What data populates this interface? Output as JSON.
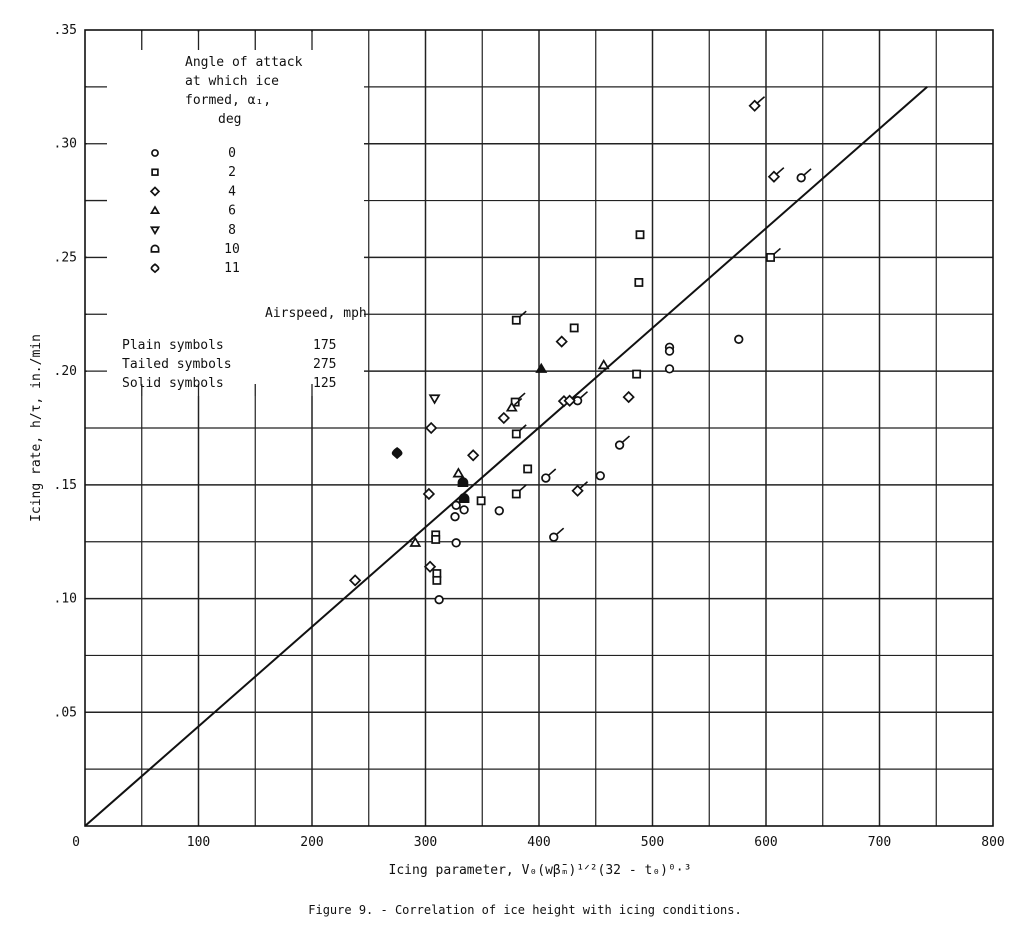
{
  "caption": "Figure 9. - Correlation of ice height with icing conditions.",
  "chart_data": {
    "type": "scatter",
    "title": "",
    "xlabel": "Icing parameter, V₀(wβ̄ₘ)¹ᐟ²(32 - t₀)⁰·³",
    "ylabel": "Icing rate, h/τ, in./min",
    "xlim": [
      0,
      800
    ],
    "ylim": [
      0,
      0.35
    ],
    "grid": true,
    "x_ticks": [
      "0",
      "100",
      "200",
      "300",
      "400",
      "500",
      "600",
      "700",
      "800"
    ],
    "y_ticks": [
      ".05",
      ".10",
      ".15",
      ".20",
      ".25",
      ".30",
      ".35"
    ],
    "legend": {
      "placement": "top-left",
      "angle_title": [
        "Angle of attack",
        "at which ice",
        "formed, α₁,",
        "deg"
      ],
      "angles": [
        {
          "symbol": "circle",
          "value": "0"
        },
        {
          "symbol": "square",
          "value": "2"
        },
        {
          "symbol": "diamond",
          "value": "4"
        },
        {
          "symbol": "triangle",
          "value": "6"
        },
        {
          "symbol": "triangle-down",
          "value": "8"
        },
        {
          "symbol": "dome",
          "value": "10"
        },
        {
          "symbol": "round-diamond",
          "value": "11"
        }
      ],
      "airspeed_title": "Airspeed, mph",
      "airspeeds": [
        {
          "label": "Plain symbols",
          "value": "175"
        },
        {
          "label": "Tailed symbols",
          "value": "275"
        },
        {
          "label": "Solid symbols",
          "value": "125"
        }
      ]
    },
    "fit_line": {
      "x": [
        0,
        742
      ],
      "y": [
        0,
        0.325
      ]
    },
    "points": [
      {
        "x": 312,
        "y": 0.0995,
        "angle": 0,
        "airspeed": 175
      },
      {
        "x": 327,
        "y": 0.1245,
        "angle": 0,
        "airspeed": 175
      },
      {
        "x": 327,
        "y": 0.141,
        "angle": 0,
        "airspeed": 175
      },
      {
        "x": 326,
        "y": 0.136,
        "angle": 0,
        "airspeed": 175
      },
      {
        "x": 334,
        "y": 0.139,
        "angle": 0,
        "airspeed": 175
      },
      {
        "x": 365,
        "y": 0.1386,
        "angle": 0,
        "airspeed": 175
      },
      {
        "x": 454,
        "y": 0.154,
        "angle": 0,
        "airspeed": 175
      },
      {
        "x": 515,
        "y": 0.2105,
        "angle": 0,
        "airspeed": 175
      },
      {
        "x": 515,
        "y": 0.2088,
        "angle": 0,
        "airspeed": 175
      },
      {
        "x": 515,
        "y": 0.201,
        "angle": 0,
        "airspeed": 175
      },
      {
        "x": 576,
        "y": 0.214,
        "angle": 0,
        "airspeed": 175
      },
      {
        "x": 406,
        "y": 0.153,
        "angle": 0,
        "airspeed": 275
      },
      {
        "x": 413,
        "y": 0.127,
        "angle": 0,
        "airspeed": 275
      },
      {
        "x": 471,
        "y": 0.1675,
        "angle": 0,
        "airspeed": 275
      },
      {
        "x": 631,
        "y": 0.285,
        "angle": 0,
        "airspeed": 275
      },
      {
        "x": 434,
        "y": 0.187,
        "angle": 0,
        "airspeed": 275
      },
      {
        "x": 309,
        "y": 0.128,
        "angle": 2,
        "airspeed": 175
      },
      {
        "x": 309,
        "y": 0.126,
        "angle": 2,
        "airspeed": 175
      },
      {
        "x": 310,
        "y": 0.111,
        "angle": 2,
        "airspeed": 175
      },
      {
        "x": 310,
        "y": 0.108,
        "angle": 2,
        "airspeed": 175
      },
      {
        "x": 349,
        "y": 0.143,
        "angle": 2,
        "airspeed": 175
      },
      {
        "x": 390,
        "y": 0.157,
        "angle": 2,
        "airspeed": 175
      },
      {
        "x": 431,
        "y": 0.219,
        "angle": 2,
        "airspeed": 175
      },
      {
        "x": 486,
        "y": 0.1987,
        "angle": 2,
        "airspeed": 175
      },
      {
        "x": 489,
        "y": 0.26,
        "angle": 2,
        "airspeed": 175
      },
      {
        "x": 488,
        "y": 0.239,
        "angle": 2,
        "airspeed": 175
      },
      {
        "x": 380,
        "y": 0.2224,
        "angle": 2,
        "airspeed": 275
      },
      {
        "x": 379,
        "y": 0.1864,
        "angle": 2,
        "airspeed": 275
      },
      {
        "x": 380,
        "y": 0.1724,
        "angle": 2,
        "airspeed": 275
      },
      {
        "x": 380,
        "y": 0.146,
        "angle": 2,
        "airspeed": 275
      },
      {
        "x": 604,
        "y": 0.25,
        "angle": 2,
        "airspeed": 275
      },
      {
        "x": 305,
        "y": 0.175,
        "angle": 4,
        "airspeed": 175
      },
      {
        "x": 342,
        "y": 0.163,
        "angle": 4,
        "airspeed": 175
      },
      {
        "x": 303,
        "y": 0.146,
        "angle": 4,
        "airspeed": 175
      },
      {
        "x": 304,
        "y": 0.114,
        "angle": 4,
        "airspeed": 175
      },
      {
        "x": 238,
        "y": 0.108,
        "angle": 4,
        "airspeed": 175
      },
      {
        "x": 420,
        "y": 0.213,
        "angle": 4,
        "airspeed": 175
      },
      {
        "x": 369,
        "y": 0.1794,
        "angle": 4,
        "airspeed": 175
      },
      {
        "x": 422,
        "y": 0.1868,
        "angle": 4,
        "airspeed": 175
      },
      {
        "x": 479,
        "y": 0.1886,
        "angle": 4,
        "airspeed": 175
      },
      {
        "x": 427,
        "y": 0.187,
        "angle": 4,
        "airspeed": 275
      },
      {
        "x": 434,
        "y": 0.1474,
        "angle": 4,
        "airspeed": 275
      },
      {
        "x": 590,
        "y": 0.3167,
        "angle": 4,
        "airspeed": 275
      },
      {
        "x": 607,
        "y": 0.2855,
        "angle": 4,
        "airspeed": 275
      },
      {
        "x": 329,
        "y": 0.155,
        "angle": 6,
        "airspeed": 175
      },
      {
        "x": 291,
        "y": 0.1245,
        "angle": 6,
        "airspeed": 175
      },
      {
        "x": 457,
        "y": 0.2026,
        "angle": 6,
        "airspeed": 175
      },
      {
        "x": 376,
        "y": 0.184,
        "angle": 6,
        "airspeed": 275
      },
      {
        "x": 402,
        "y": 0.201,
        "angle": 6,
        "airspeed": 125
      },
      {
        "x": 308,
        "y": 0.188,
        "angle": 8,
        "airspeed": 175
      },
      {
        "x": 333,
        "y": 0.151,
        "angle": 10,
        "airspeed": 125
      },
      {
        "x": 334,
        "y": 0.144,
        "angle": 10,
        "airspeed": 125
      },
      {
        "x": 275,
        "y": 0.164,
        "angle": 11,
        "airspeed": 125
      }
    ]
  }
}
